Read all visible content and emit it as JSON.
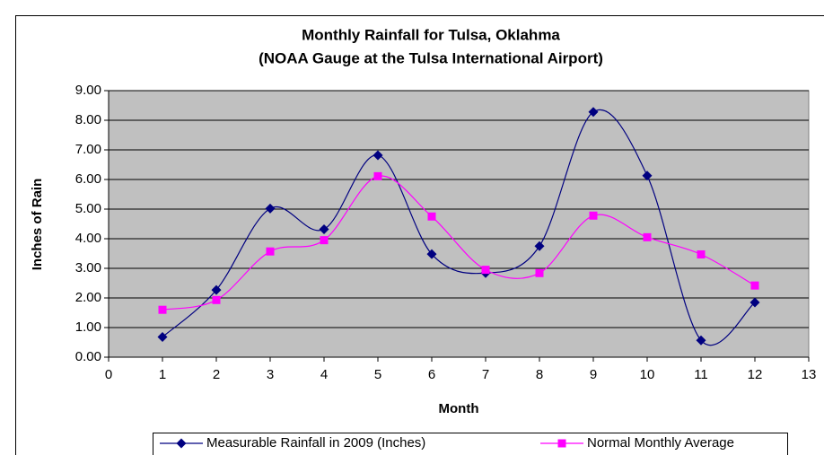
{
  "chart_data": {
    "type": "line",
    "title": "Monthly Rainfall for Tulsa, Oklahma",
    "subtitle": "(NOAA Gauge at the Tulsa International Airport)",
    "x_label": "Month",
    "y_label": "Inches of Rain",
    "x": [
      1,
      2,
      3,
      4,
      5,
      6,
      7,
      8,
      9,
      10,
      11,
      12
    ],
    "series": [
      {
        "name": "Measurable Rainfall in 2009 (Inches)",
        "color": "#000080",
        "marker": "diamond",
        "values": [
          0.68,
          2.27,
          5.02,
          4.32,
          6.82,
          3.48,
          2.84,
          3.75,
          8.28,
          6.13,
          0.57,
          1.85
        ]
      },
      {
        "name": "Normal Monthly Average",
        "color": "#ff00ff",
        "marker": "square",
        "values": [
          1.6,
          1.93,
          3.57,
          3.95,
          6.11,
          4.75,
          2.95,
          2.84,
          4.78,
          4.05,
          3.47,
          2.42
        ]
      }
    ],
    "xlim": [
      0,
      13
    ],
    "xticks": [
      0,
      1,
      2,
      3,
      4,
      5,
      6,
      7,
      8,
      9,
      10,
      11,
      12,
      13
    ],
    "ylim": [
      0,
      9
    ],
    "yticks": [
      {
        "value": 0,
        "label": "0.00"
      },
      {
        "value": 1,
        "label": "1.00"
      },
      {
        "value": 2,
        "label": "2.00"
      },
      {
        "value": 3,
        "label": "3.00"
      },
      {
        "value": 4,
        "label": "4.00"
      },
      {
        "value": 5,
        "label": "5.00"
      },
      {
        "value": 6,
        "label": "6.00"
      },
      {
        "value": 7,
        "label": "7.00"
      },
      {
        "value": 8,
        "label": "8.00"
      },
      {
        "value": 9,
        "label": "9.00"
      }
    ],
    "grid": true,
    "smooth": true,
    "legend": "bottom"
  }
}
